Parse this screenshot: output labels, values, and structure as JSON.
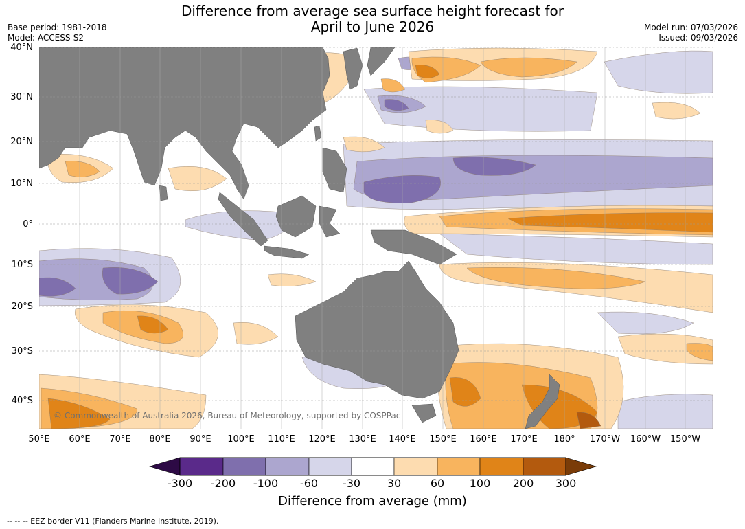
{
  "title_line1": "Difference from average sea surface height forecast for",
  "title_line2": "April to June 2026",
  "base_period": "Base period: 1981-2018",
  "model": "Model: ACCESS-S2",
  "model_run": "Model run: 07/03/2026",
  "issued": "Issued: 09/03/2026",
  "copyright": "© Commonwealth of Australia 2026, Bureau of Meteorology, supported by COSPPac",
  "footer": "--  --  -- EEZ border V11 (Flanders Marine Institute, 2019).",
  "lat_labels": [
    "40°N",
    "30°N",
    "20°N",
    "10°N",
    "0°",
    "10°S",
    "20°S",
    "30°S",
    "40°S"
  ],
  "lon_labels": [
    "50°E",
    "60°E",
    "70°E",
    "80°E",
    "90°E",
    "100°E",
    "110°E",
    "120°E",
    "130°E",
    "140°E",
    "150°E",
    "160°E",
    "170°E",
    "180°",
    "170°W",
    "160°W",
    "150°W"
  ],
  "colorbar": {
    "ticks": [
      "-300",
      "-200",
      "-100",
      "-60",
      "-30",
      "30",
      "60",
      "100",
      "200",
      "300"
    ],
    "label": "Difference from average (mm)",
    "colors": [
      "#2d0a45",
      "#5a2a8a",
      "#7f6fad",
      "#aca6cf",
      "#d6d6ea",
      "#ffffff",
      "#fddcb0",
      "#f8b45e",
      "#e08418",
      "#b35a0e",
      "#7a3c08"
    ]
  }
}
